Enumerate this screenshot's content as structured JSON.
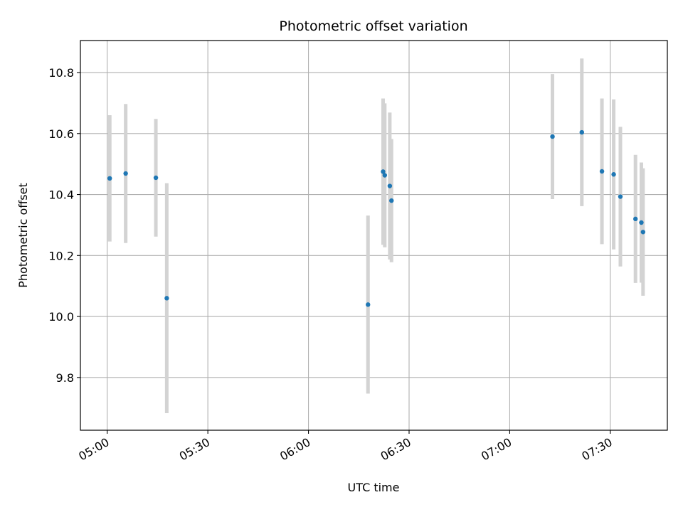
{
  "chart_data": {
    "type": "scatter",
    "title": "Photometric offset variation",
    "xlabel": "UTC time",
    "ylabel": "Photometric offset",
    "xlim": [
      "04:52",
      "07:47"
    ],
    "ylim": [
      9.627,
      10.905
    ],
    "x_ticks": [
      "05:00",
      "05:30",
      "06:00",
      "06:30",
      "07:00",
      "07:30"
    ],
    "y_ticks": [
      9.8,
      10.0,
      10.2,
      10.4,
      10.6,
      10.8
    ],
    "grid": true,
    "marker_color": "#1f77b4",
    "errorbar_color": "#d3d3d3",
    "points": [
      {
        "time": "05:00:45",
        "y": 10.453,
        "err": 0.207
      },
      {
        "time": "05:05:30",
        "y": 10.469,
        "err": 0.228
      },
      {
        "time": "05:14:30",
        "y": 10.455,
        "err": 0.193
      },
      {
        "time": "05:17:45",
        "y": 10.06,
        "err": 0.377
      },
      {
        "time": "06:17:45",
        "y": 10.039,
        "err": 0.292
      },
      {
        "time": "06:22:15",
        "y": 10.475,
        "err": 0.24
      },
      {
        "time": "06:22:45",
        "y": 10.463,
        "err": 0.236
      },
      {
        "time": "06:24:15",
        "y": 10.428,
        "err": 0.241
      },
      {
        "time": "06:24:45",
        "y": 10.38,
        "err": 0.202
      },
      {
        "time": "07:12:45",
        "y": 10.59,
        "err": 0.205
      },
      {
        "time": "07:21:30",
        "y": 10.604,
        "err": 0.242
      },
      {
        "time": "07:27:30",
        "y": 10.476,
        "err": 0.239
      },
      {
        "time": "07:31:00",
        "y": 10.466,
        "err": 0.246
      },
      {
        "time": "07:33:00",
        "y": 10.393,
        "err": 0.229
      },
      {
        "time": "07:37:30",
        "y": 10.32,
        "err": 0.21
      },
      {
        "time": "07:39:15",
        "y": 10.308,
        "err": 0.197
      },
      {
        "time": "07:39:45",
        "y": 10.277,
        "err": 0.209
      }
    ]
  }
}
